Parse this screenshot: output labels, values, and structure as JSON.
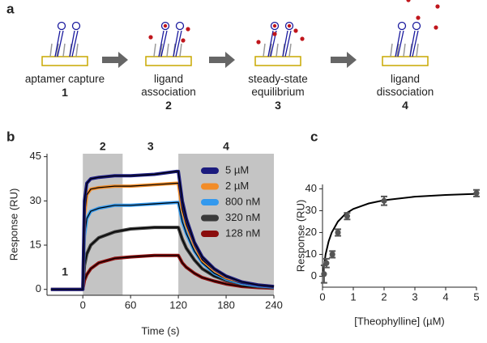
{
  "diagram": {
    "panel_label": "a",
    "steps": [
      {
        "label": "aptamer capture",
        "number": "1"
      },
      {
        "label": "ligand association",
        "number": "2"
      },
      {
        "label": "steady-state equilibrium",
        "number": "3"
      },
      {
        "label": "ligand dissociation",
        "number": "4"
      }
    ]
  },
  "chart_data": [
    {
      "type": "line",
      "panel_label": "b",
      "x_label": "Time (s)",
      "y_label": "Response (RU)",
      "xlim": [
        -45,
        240
      ],
      "xticks": [
        0,
        60,
        120,
        180,
        240
      ],
      "ylim": [
        -2,
        46
      ],
      "yticks": [
        0,
        15,
        30,
        45
      ],
      "phases": [
        {
          "label": "1",
          "range": [
            -45,
            0
          ],
          "shaded": false
        },
        {
          "label": "2",
          "range": [
            0,
            50
          ],
          "shaded": true
        },
        {
          "label": "3",
          "range": [
            50,
            120
          ],
          "shaded": false
        },
        {
          "label": "4",
          "range": [
            120,
            240
          ],
          "shaded": true
        }
      ],
      "fit_color": "#000000",
      "legend": "top-right",
      "x": [
        -40,
        -20,
        0,
        2,
        5,
        10,
        20,
        40,
        60,
        90,
        118,
        120,
        125,
        130,
        140,
        150,
        165,
        180,
        200,
        220,
        240
      ],
      "series": [
        {
          "name": "5 µM",
          "color": "#1b1b7e",
          "values": [
            0,
            0,
            0,
            30,
            36,
            37.5,
            38,
            38.5,
            38.5,
            39,
            40,
            40,
            30,
            24,
            16,
            11,
            7,
            4.5,
            2.5,
            1.5,
            1
          ]
        },
        {
          "name": "2 µM",
          "color": "#f28c28",
          "values": [
            0,
            0,
            0,
            25,
            32,
            34,
            34.5,
            35,
            35,
            35.5,
            36,
            36,
            27,
            22,
            15,
            10,
            6.5,
            4,
            2.5,
            1.5,
            1
          ]
        },
        {
          "name": "800 nM",
          "color": "#3399ee",
          "values": [
            0,
            0,
            0,
            18,
            24,
            26.5,
            27.5,
            28.5,
            28.5,
            29,
            29.5,
            29.5,
            23,
            19,
            13,
            9,
            5.5,
            3.5,
            2,
            1.2,
            0.8
          ]
        },
        {
          "name": "320 nM",
          "color": "#3a3a3a",
          "values": [
            0,
            0,
            0,
            8,
            12,
            15,
            17.5,
            19.5,
            20.5,
            21,
            21,
            21,
            17,
            14,
            10,
            7,
            4.5,
            3,
            1.8,
            1,
            0.6
          ]
        },
        {
          "name": "128 nM",
          "color": "#8b0d0d",
          "values": [
            0,
            0,
            0,
            3,
            5,
            7,
            9,
            10.5,
            11,
            11.5,
            11.5,
            11.5,
            9,
            7.5,
            5.5,
            4,
            2.8,
            1.8,
            1,
            0.6,
            0.4
          ]
        }
      ]
    },
    {
      "type": "scatter",
      "panel_label": "c",
      "x_label": "[Theophylline] (µM)",
      "y_label": "Response (RU)",
      "xlim": [
        0,
        5
      ],
      "xticks": [
        0,
        1,
        2,
        3,
        4,
        5
      ],
      "ylim": [
        -5,
        42
      ],
      "yticks": [
        0,
        10,
        20,
        30,
        40
      ],
      "color": "#555555",
      "x": [
        0.05,
        0.128,
        0.32,
        0.5,
        0.8,
        2,
        5
      ],
      "values": [
        1,
        6,
        10,
        20,
        27.5,
        34.5,
        38
      ],
      "errors": [
        4,
        2,
        1.5,
        1.5,
        1.5,
        2,
        1.5
      ],
      "fit": {
        "color": "#000000",
        "x": [
          0,
          0.1,
          0.2,
          0.3,
          0.5,
          0.75,
          1,
          1.5,
          2,
          3,
          4,
          5
        ],
        "values": [
          0,
          10,
          16,
          20,
          25,
          28.6,
          30.8,
          33.3,
          34.8,
          36.4,
          37.2,
          37.7
        ]
      }
    }
  ]
}
